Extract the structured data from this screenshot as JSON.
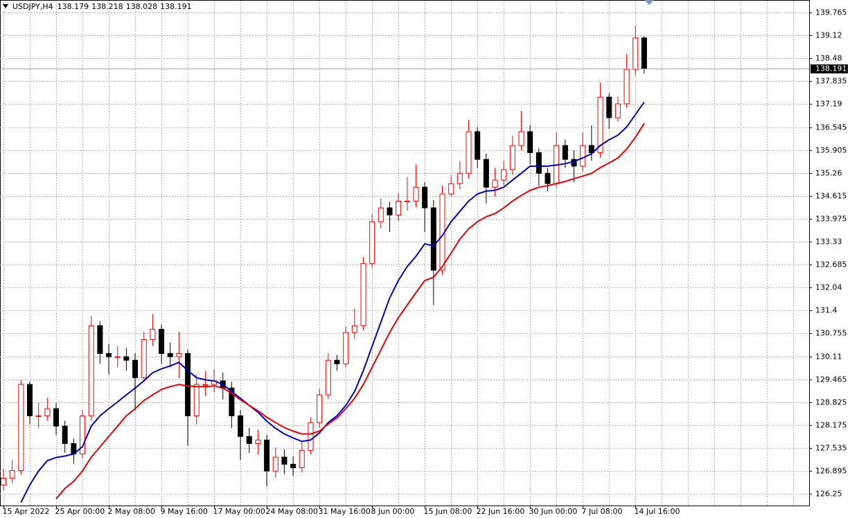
{
  "chart_data": {
    "type": "candlestick",
    "symbol": "USDJPY,H4",
    "header_ohlc": [
      138.179,
      138.218,
      138.028,
      138.191
    ],
    "current_price": 138.191,
    "up_color": "#ff0000",
    "down_color": "#000000",
    "grid": true,
    "ylim": [
      125.92,
      139.96
    ],
    "yticks": [
      126.25,
      126.895,
      127.535,
      128.175,
      128.825,
      129.465,
      130.11,
      130.755,
      131.4,
      132.04,
      132.685,
      133.33,
      133.975,
      134.615,
      135.26,
      135.905,
      136.545,
      137.19,
      137.835,
      138.48,
      139.12,
      139.765
    ],
    "categories": [
      "15 Apr 2022",
      null,
      null,
      null,
      null,
      null,
      "25 Apr 00:00",
      null,
      null,
      null,
      null,
      null,
      "2 May 08:00",
      null,
      null,
      null,
      null,
      null,
      "9 May 16:00",
      null,
      null,
      null,
      null,
      null,
      "17 May 00:00",
      null,
      null,
      null,
      null,
      null,
      "24 May 08:00",
      null,
      null,
      null,
      null,
      null,
      "31 May 16:00",
      null,
      null,
      null,
      null,
      null,
      "8 Jun 00:00",
      null,
      null,
      null,
      null,
      null,
      "15 Jun 08:00",
      null,
      null,
      null,
      null,
      null,
      "22 Jun 16:00",
      null,
      null,
      null,
      null,
      null,
      "30 Jun 00:00",
      null,
      null,
      null,
      null,
      null,
      "7 Jul 08:00",
      null,
      null,
      null,
      null,
      null,
      "14 Jul 16:00",
      null
    ],
    "open": [
      126.5,
      126.69,
      126.9,
      129.32,
      128.44,
      128.44,
      128.64,
      128.15,
      127.66,
      127.37,
      128.44,
      130.97,
      130.19,
      130.1,
      130.1,
      130.0,
      129.51,
      130.58,
      130.87,
      130.19,
      130.1,
      130.19,
      128.44,
      129.32,
      129.32,
      129.42,
      129.22,
      128.44,
      127.86,
      127.66,
      127.76,
      126.89,
      127.28,
      127.08,
      126.98,
      127.47,
      128.25,
      129.03,
      130.0,
      129.9,
      130.78,
      130.97,
      132.72,
      133.89,
      134.28,
      134.08,
      134.47,
      134.47,
      134.86,
      134.28,
      132.53,
      134.67,
      134.96,
      135.25,
      136.42,
      135.64,
      134.86,
      135.06,
      135.35,
      136.03,
      136.42,
      135.83,
      135.25,
      134.96,
      136.03,
      135.64,
      135.45,
      136.03,
      135.83,
      137.39,
      136.81,
      137.2,
      138.17,
      139.05
    ],
    "high": [
      126.95,
      127.2,
      129.45,
      129.4,
      128.8,
      128.95,
      128.8,
      128.3,
      127.8,
      128.6,
      131.25,
      131.1,
      130.45,
      130.4,
      130.35,
      130.2,
      130.8,
      131.3,
      131.0,
      130.5,
      130.8,
      130.3,
      129.6,
      129.7,
      129.75,
      129.65,
      129.4,
      128.6,
      128.1,
      128.05,
      127.9,
      127.55,
      127.5,
      127.3,
      127.7,
      128.4,
      129.2,
      130.2,
      130.15,
      130.95,
      131.45,
      132.9,
      134.1,
      134.55,
      134.45,
      134.7,
      135.15,
      135.5,
      135.0,
      134.5,
      134.9,
      135.2,
      135.6,
      136.75,
      136.55,
      135.8,
      135.4,
      135.6,
      136.3,
      137.0,
      136.6,
      135.95,
      135.4,
      136.4,
      136.2,
      135.9,
      136.4,
      136.6,
      137.8,
      137.5,
      137.4,
      138.6,
      139.4,
      139.1
    ],
    "low": [
      126.35,
      126.55,
      126.8,
      128.2,
      128.1,
      128.3,
      127.9,
      127.4,
      127.1,
      127.25,
      128.3,
      129.9,
      129.6,
      129.8,
      129.7,
      128.6,
      129.4,
      130.4,
      129.9,
      129.8,
      129.5,
      127.6,
      128.2,
      129.0,
      129.1,
      128.9,
      128.1,
      127.2,
      127.4,
      127.35,
      126.45,
      126.7,
      126.8,
      126.75,
      126.85,
      127.35,
      128.1,
      128.9,
      129.7,
      129.8,
      130.6,
      130.85,
      132.6,
      133.7,
      133.6,
      133.9,
      134.2,
      134.3,
      133.6,
      131.55,
      132.4,
      134.6,
      134.8,
      135.1,
      135.4,
      134.4,
      134.6,
      134.9,
      135.2,
      135.9,
      135.5,
      134.9,
      134.75,
      134.85,
      135.4,
      135.0,
      135.3,
      135.6,
      135.7,
      136.5,
      136.7,
      137.1,
      138.0,
      138.05
    ],
    "close": [
      126.69,
      126.9,
      129.32,
      128.44,
      128.44,
      128.64,
      128.15,
      127.66,
      127.37,
      128.44,
      130.97,
      130.19,
      130.1,
      130.1,
      130.0,
      129.51,
      130.58,
      130.87,
      130.19,
      130.1,
      130.19,
      128.44,
      129.32,
      129.32,
      129.42,
      129.22,
      128.44,
      127.86,
      127.66,
      127.76,
      126.89,
      127.28,
      127.08,
      126.98,
      127.47,
      128.25,
      129.03,
      130.0,
      129.9,
      130.78,
      130.97,
      132.72,
      133.89,
      134.28,
      134.08,
      134.47,
      134.47,
      134.86,
      134.28,
      132.53,
      134.67,
      134.96,
      135.25,
      136.42,
      135.64,
      134.86,
      135.06,
      135.35,
      136.03,
      136.42,
      135.83,
      135.25,
      134.96,
      136.03,
      135.64,
      135.45,
      136.03,
      135.83,
      137.39,
      136.81,
      137.2,
      138.17,
      139.05,
      138.191
    ],
    "lines": [
      {
        "color": "#0000cc",
        "values": [
          null,
          null,
          126.01,
          126.5,
          126.89,
          127.18,
          127.27,
          127.31,
          127.37,
          127.57,
          128.15,
          128.44,
          128.64,
          128.83,
          129.03,
          129.22,
          129.42,
          129.65,
          129.76,
          129.84,
          129.94,
          129.71,
          129.51,
          129.45,
          129.42,
          129.32,
          129.12,
          128.93,
          128.73,
          128.54,
          128.29,
          128.09,
          127.93,
          127.82,
          127.72,
          127.76,
          127.96,
          128.25,
          128.44,
          128.73,
          129.12,
          129.71,
          130.39,
          131.07,
          131.75,
          132.24,
          132.63,
          132.92,
          133.27,
          133.21,
          133.5,
          133.89,
          134.18,
          134.47,
          134.67,
          134.75,
          134.77,
          134.86,
          135.06,
          135.25,
          135.45,
          135.45,
          135.45,
          135.48,
          135.52,
          135.58,
          135.68,
          135.8,
          136.03,
          136.19,
          136.32,
          136.55,
          136.9,
          137.25
        ]
      },
      {
        "color": "#ee0000",
        "values": [
          null,
          null,
          null,
          null,
          null,
          null,
          126.11,
          126.4,
          126.6,
          126.89,
          127.28,
          127.57,
          127.86,
          128.15,
          128.44,
          128.64,
          128.87,
          129.03,
          129.18,
          129.26,
          129.32,
          129.28,
          129.26,
          129.26,
          129.28,
          129.22,
          129.07,
          128.89,
          128.73,
          128.58,
          128.4,
          128.25,
          128.11,
          128.01,
          127.93,
          127.93,
          128.01,
          128.21,
          128.38,
          128.64,
          128.93,
          129.32,
          129.8,
          130.29,
          130.78,
          131.2,
          131.55,
          131.9,
          132.24,
          132.33,
          132.63,
          133.01,
          133.4,
          133.69,
          133.89,
          134.03,
          134.12,
          134.28,
          134.47,
          134.63,
          134.77,
          134.86,
          134.9,
          134.96,
          135.02,
          135.1,
          135.17,
          135.25,
          135.41,
          135.54,
          135.68,
          135.93,
          136.26,
          136.65
        ]
      }
    ]
  }
}
